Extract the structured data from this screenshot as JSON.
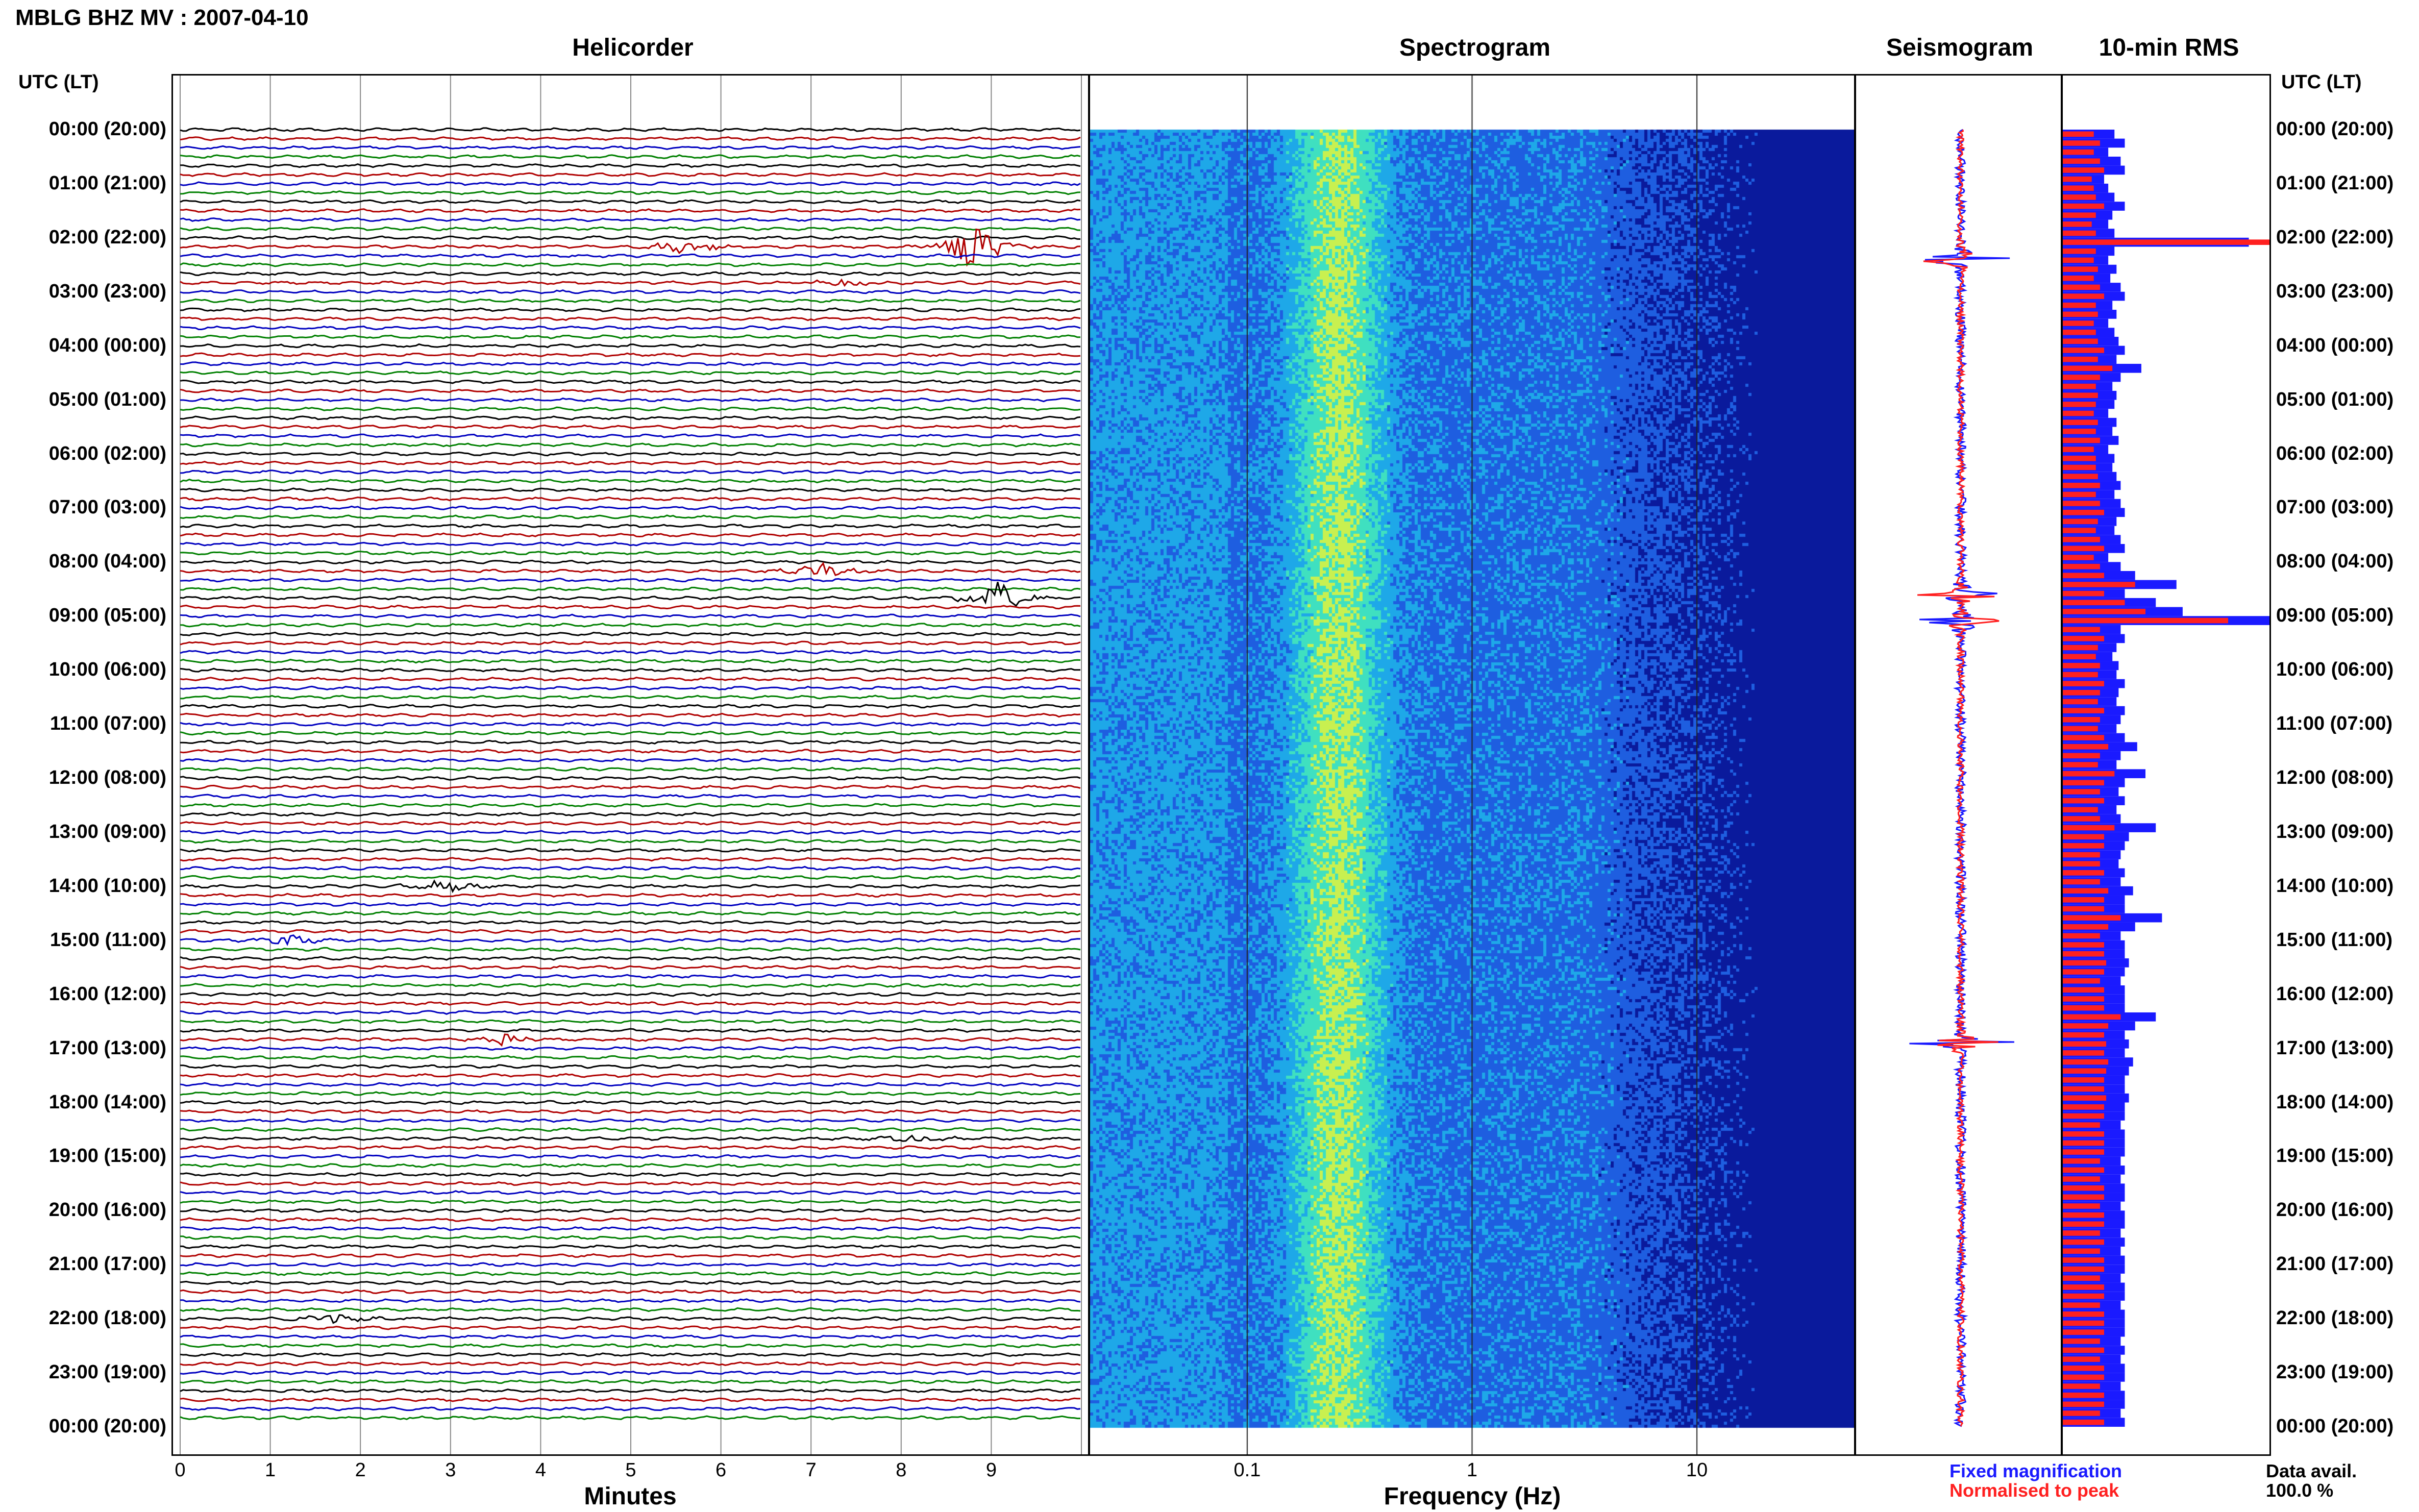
{
  "header": {
    "title": "MBLG BHZ MV : 2007-04-10"
  },
  "panels": {
    "helicorder": "Helicorder",
    "spectrogram": "Spectrogram",
    "seismogram": "Seismogram",
    "rms": "10-min RMS"
  },
  "axis_left_header": "UTC (LT)",
  "axis_right_header": "UTC (LT)",
  "legend": {
    "fixed": "Fixed magnification",
    "normalised": "Normalised to peak",
    "fixed_color": "#1a1aff",
    "normalised_color": "#ff2020"
  },
  "data_avail": {
    "label": "Data avail.",
    "value": "100.0 %"
  },
  "chart_data": [
    {
      "type": "line",
      "title": "Helicorder",
      "xlabel": "Minutes",
      "xlim": [
        0,
        10
      ],
      "x_ticks": [
        "0",
        "1",
        "2",
        "3",
        "4",
        "5",
        "6",
        "7",
        "8",
        "9"
      ],
      "hour_labels": [
        "00:00 (20:00)",
        "01:00 (21:00)",
        "02:00 (22:00)",
        "03:00 (23:00)",
        "04:00 (00:00)",
        "05:00 (01:00)",
        "06:00 (02:00)",
        "07:00 (03:00)",
        "08:00 (04:00)",
        "09:00 (05:00)",
        "10:00 (06:00)",
        "11:00 (07:00)",
        "12:00 (08:00)",
        "13:00 (09:00)",
        "14:00 (10:00)",
        "15:00 (11:00)",
        "16:00 (12:00)",
        "17:00 (13:00)",
        "18:00 (14:00)",
        "19:00 (15:00)",
        "20:00 (16:00)",
        "21:00 (17:00)",
        "22:00 (18:00)",
        "23:00 (19:00)",
        "00:00 (20:00)"
      ],
      "trace_colors": [
        "#000000",
        "#b00000",
        "#0000c0",
        "#008000"
      ],
      "traces_per_hour": 6,
      "events": [
        {
          "trace": 13,
          "minute": 5.6,
          "amp": 0.9
        },
        {
          "trace": 13,
          "minute": 8.8,
          "amp": 2.6
        },
        {
          "trace": 17,
          "minute": 7.4,
          "amp": 0.6
        },
        {
          "trace": 49,
          "minute": 7.1,
          "amp": 1.0
        },
        {
          "trace": 52,
          "minute": 9.1,
          "amp": 2.0
        },
        {
          "trace": 84,
          "minute": 2.9,
          "amp": 0.7
        },
        {
          "trace": 90,
          "minute": 1.2,
          "amp": 0.5
        },
        {
          "trace": 101,
          "minute": 3.6,
          "amp": 0.6
        },
        {
          "trace": 112,
          "minute": 8.1,
          "amp": 0.5
        },
        {
          "trace": 132,
          "minute": 1.7,
          "amp": 0.5
        }
      ]
    },
    {
      "type": "heatmap",
      "title": "Spectrogram",
      "xlabel": "Frequency (Hz)",
      "x_scale": "log",
      "xlim": [
        0.02,
        50
      ],
      "x_ticks": [
        "0.1",
        "1",
        "10"
      ],
      "colormap": [
        "#0a1a9c",
        "#1e5ee0",
        "#1ea8e8",
        "#3fe0c0",
        "#c8f050"
      ],
      "peak_frequency_hz": 0.25
    },
    {
      "type": "line",
      "title": "Seismogram",
      "series": [
        {
          "name": "Fixed magnification",
          "color": "#1a1aff"
        },
        {
          "name": "Normalised to peak",
          "color": "#ff2020"
        }
      ],
      "spikes_hour": [
        2.4,
        8.6,
        9.1,
        16.9
      ]
    },
    {
      "type": "bar",
      "title": "10-min RMS",
      "orientation": "horizontal",
      "xlim": [
        0,
        1
      ],
      "series": [
        {
          "name": "Fixed magnification",
          "color": "#1a1aff",
          "values": [
            0.25,
            0.3,
            0.22,
            0.28,
            0.3,
            0.2,
            0.22,
            0.25,
            0.3,
            0.24,
            0.22,
            0.25,
            0.9,
            0.25,
            0.22,
            0.26,
            0.23,
            0.28,
            0.3,
            0.24,
            0.26,
            0.22,
            0.25,
            0.27,
            0.3,
            0.26,
            0.38,
            0.28,
            0.24,
            0.26,
            0.25,
            0.22,
            0.26,
            0.24,
            0.27,
            0.22,
            0.25,
            0.24,
            0.26,
            0.28,
            0.25,
            0.28,
            0.3,
            0.26,
            0.25,
            0.28,
            0.3,
            0.22,
            0.28,
            0.35,
            0.55,
            0.3,
            0.45,
            0.58,
            1.0,
            0.28,
            0.3,
            0.26,
            0.24,
            0.27,
            0.26,
            0.3,
            0.27,
            0.26,
            0.3,
            0.28,
            0.26,
            0.3,
            0.36,
            0.28,
            0.26,
            0.4,
            0.3,
            0.27,
            0.3,
            0.26,
            0.28,
            0.45,
            0.32,
            0.3,
            0.28,
            0.27,
            0.3,
            0.28,
            0.34,
            0.3,
            0.3,
            0.48,
            0.35,
            0.28,
            0.3,
            0.3,
            0.32,
            0.3,
            0.28,
            0.3,
            0.3,
            0.3,
            0.45,
            0.35,
            0.3,
            0.32,
            0.3,
            0.34,
            0.32,
            0.3,
            0.3,
            0.32,
            0.3,
            0.3,
            0.28,
            0.3,
            0.3,
            0.3,
            0.28,
            0.3,
            0.28,
            0.3,
            0.3,
            0.28,
            0.3,
            0.3,
            0.28,
            0.3,
            0.28,
            0.3,
            0.3,
            0.28,
            0.3,
            0.3,
            0.28,
            0.3,
            0.3,
            0.3,
            0.28,
            0.3,
            0.28,
            0.3,
            0.3,
            0.28,
            0.3,
            0.3,
            0.28,
            0.3
          ]
        },
        {
          "name": "Normalised to peak",
          "color": "#ff2020",
          "values": [
            0.15,
            0.18,
            0.15,
            0.18,
            0.2,
            0.14,
            0.15,
            0.16,
            0.2,
            0.16,
            0.14,
            0.16,
            1.0,
            0.16,
            0.15,
            0.17,
            0.15,
            0.18,
            0.2,
            0.16,
            0.17,
            0.15,
            0.16,
            0.17,
            0.2,
            0.17,
            0.24,
            0.18,
            0.16,
            0.17,
            0.16,
            0.15,
            0.17,
            0.16,
            0.18,
            0.15,
            0.16,
            0.16,
            0.17,
            0.18,
            0.16,
            0.18,
            0.2,
            0.17,
            0.16,
            0.18,
            0.2,
            0.15,
            0.18,
            0.2,
            0.35,
            0.2,
            0.3,
            0.4,
            0.8,
            0.18,
            0.2,
            0.17,
            0.16,
            0.18,
            0.17,
            0.2,
            0.18,
            0.17,
            0.2,
            0.18,
            0.17,
            0.2,
            0.22,
            0.18,
            0.17,
            0.25,
            0.2,
            0.18,
            0.2,
            0.17,
            0.18,
            0.25,
            0.2,
            0.2,
            0.18,
            0.18,
            0.2,
            0.18,
            0.22,
            0.2,
            0.2,
            0.28,
            0.22,
            0.18,
            0.2,
            0.2,
            0.21,
            0.2,
            0.18,
            0.2,
            0.2,
            0.2,
            0.28,
            0.22,
            0.2,
            0.21,
            0.2,
            0.22,
            0.21,
            0.2,
            0.2,
            0.21,
            0.2,
            0.2,
            0.18,
            0.2,
            0.2,
            0.2,
            0.18,
            0.2,
            0.18,
            0.2,
            0.2,
            0.18,
            0.2,
            0.2,
            0.18,
            0.2,
            0.18,
            0.2,
            0.2,
            0.18,
            0.2,
            0.2,
            0.18,
            0.2,
            0.2,
            0.2,
            0.18,
            0.2,
            0.18,
            0.2,
            0.2,
            0.18,
            0.2,
            0.2,
            0.18,
            0.2
          ]
        }
      ]
    }
  ]
}
